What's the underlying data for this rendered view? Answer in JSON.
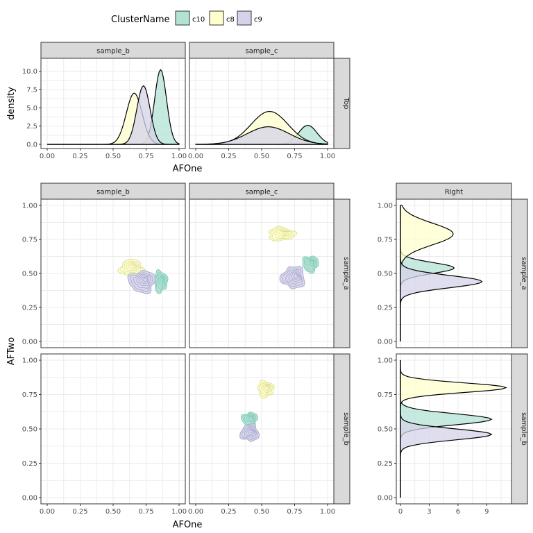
{
  "colors": {
    "c10": "#b3e2d5",
    "c8": "#ffffcc",
    "c9": "#d4d3e9",
    "strip_bg": "#d9d9d9",
    "grid": "#ebebeb",
    "border": "#333333"
  },
  "legend": {
    "title": "ClusterName",
    "items": [
      {
        "key": "c10",
        "label": "c10"
      },
      {
        "key": "c8",
        "label": "c8"
      },
      {
        "key": "c9",
        "label": "c9"
      }
    ]
  },
  "labels": {
    "top_y": "density",
    "top_x": "AFOne",
    "main_y": "AFTwo",
    "main_x": "AFOne",
    "top_row_strip": "Top",
    "right_col_strip": "Right"
  },
  "strips": {
    "cols": [
      "sample_b",
      "sample_c"
    ],
    "rows": [
      "sample_a",
      "sample_b"
    ]
  },
  "ticks": {
    "af": [
      "0.00",
      "0.25",
      "0.50",
      "0.75",
      "1.00"
    ],
    "density_top": [
      "0.0",
      "2.5",
      "5.0",
      "7.5",
      "10.0"
    ],
    "density_right": [
      "0",
      "3",
      "6",
      "9"
    ]
  },
  "chart_data": {
    "type": "scatter",
    "description_key": "marginal density + 2D density contour plot",
    "x_label": "AFOne",
    "y_label": "AFTwo",
    "xlim": [
      0,
      1
    ],
    "ylim": [
      0,
      1
    ],
    "top_density_ylim": [
      0,
      11
    ],
    "right_density_xlim": [
      0,
      11
    ],
    "top_densities": {
      "sample_b": [
        {
          "cluster": "c10",
          "mean": 0.86,
          "sd": 0.045,
          "peak": 10.2
        },
        {
          "cluster": "c8",
          "mean": 0.66,
          "sd": 0.06,
          "peak": 7.0
        },
        {
          "cluster": "c9",
          "mean": 0.73,
          "sd": 0.05,
          "peak": 8.0
        }
      ],
      "sample_c": [
        {
          "cluster": "c10",
          "mean": 0.85,
          "sd": 0.07,
          "peak": 2.6
        },
        {
          "cluster": "c8",
          "mean": 0.56,
          "sd": 0.14,
          "peak": 4.5
        },
        {
          "cluster": "c9",
          "mean": 0.55,
          "sd": 0.16,
          "peak": 2.4
        }
      ]
    },
    "right_densities": {
      "sample_a": [
        {
          "cluster": "c10",
          "mean": 0.54,
          "sd": 0.04,
          "peak": 5.6
        },
        {
          "cluster": "c8",
          "mean": 0.79,
          "sd": 0.08,
          "peak": 5.5
        },
        {
          "cluster": "c9",
          "mean": 0.44,
          "sd": 0.045,
          "peak": 8.5
        }
      ],
      "sample_b": [
        {
          "cluster": "c10",
          "mean": 0.57,
          "sd": 0.04,
          "peak": 9.5
        },
        {
          "cluster": "c8",
          "mean": 0.8,
          "sd": 0.035,
          "peak": 11.0
        },
        {
          "cluster": "c9",
          "mean": 0.46,
          "sd": 0.04,
          "peak": 9.5
        }
      ]
    },
    "clusters_2d": {
      "sample_a__sample_b": [
        {
          "cluster": "c8",
          "cx": 0.64,
          "cy": 0.54,
          "rx": 0.09,
          "ry": 0.06
        },
        {
          "cluster": "c10",
          "cx": 0.86,
          "cy": 0.44,
          "rx": 0.05,
          "ry": 0.08
        },
        {
          "cluster": "c9",
          "cx": 0.72,
          "cy": 0.44,
          "rx": 0.1,
          "ry": 0.08
        }
      ],
      "sample_a__sample_c": [
        {
          "cluster": "c8",
          "cx": 0.65,
          "cy": 0.79,
          "rx": 0.1,
          "ry": 0.05
        },
        {
          "cluster": "c10",
          "cx": 0.87,
          "cy": 0.57,
          "rx": 0.06,
          "ry": 0.06
        },
        {
          "cluster": "c9",
          "cx": 0.74,
          "cy": 0.47,
          "rx": 0.09,
          "ry": 0.08
        }
      ],
      "sample_b__sample_b": [],
      "sample_b__sample_c": [
        {
          "cluster": "c8",
          "cx": 0.53,
          "cy": 0.79,
          "rx": 0.06,
          "ry": 0.06
        },
        {
          "cluster": "c10",
          "cx": 0.41,
          "cy": 0.57,
          "rx": 0.06,
          "ry": 0.05
        },
        {
          "cluster": "c9",
          "cx": 0.41,
          "cy": 0.47,
          "rx": 0.07,
          "ry": 0.06
        }
      ]
    }
  }
}
